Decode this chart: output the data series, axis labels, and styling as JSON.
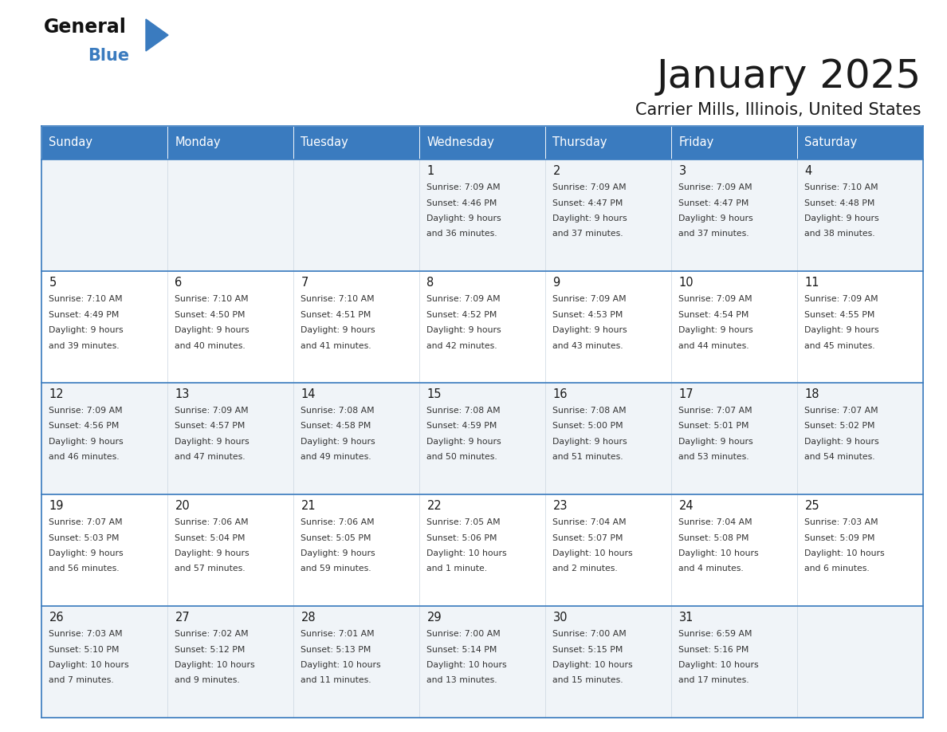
{
  "title": "January 2025",
  "subtitle": "Carrier Mills, Illinois, United States",
  "header_bg": "#3a7bbf",
  "header_text": "#ffffff",
  "row_bg_odd": "#f0f4f8",
  "row_bg_even": "#ffffff",
  "cell_border": "#c8d4e0",
  "day_number_color": "#1a1a1a",
  "data_text_color": "#333333",
  "days_of_week": [
    "Sunday",
    "Monday",
    "Tuesday",
    "Wednesday",
    "Thursday",
    "Friday",
    "Saturday"
  ],
  "weeks": [
    [
      {
        "day": "",
        "info": ""
      },
      {
        "day": "",
        "info": ""
      },
      {
        "day": "",
        "info": ""
      },
      {
        "day": "1",
        "info": "Sunrise: 7:09 AM\nSunset: 4:46 PM\nDaylight: 9 hours\nand 36 minutes."
      },
      {
        "day": "2",
        "info": "Sunrise: 7:09 AM\nSunset: 4:47 PM\nDaylight: 9 hours\nand 37 minutes."
      },
      {
        "day": "3",
        "info": "Sunrise: 7:09 AM\nSunset: 4:47 PM\nDaylight: 9 hours\nand 37 minutes."
      },
      {
        "day": "4",
        "info": "Sunrise: 7:10 AM\nSunset: 4:48 PM\nDaylight: 9 hours\nand 38 minutes."
      }
    ],
    [
      {
        "day": "5",
        "info": "Sunrise: 7:10 AM\nSunset: 4:49 PM\nDaylight: 9 hours\nand 39 minutes."
      },
      {
        "day": "6",
        "info": "Sunrise: 7:10 AM\nSunset: 4:50 PM\nDaylight: 9 hours\nand 40 minutes."
      },
      {
        "day": "7",
        "info": "Sunrise: 7:10 AM\nSunset: 4:51 PM\nDaylight: 9 hours\nand 41 minutes."
      },
      {
        "day": "8",
        "info": "Sunrise: 7:09 AM\nSunset: 4:52 PM\nDaylight: 9 hours\nand 42 minutes."
      },
      {
        "day": "9",
        "info": "Sunrise: 7:09 AM\nSunset: 4:53 PM\nDaylight: 9 hours\nand 43 minutes."
      },
      {
        "day": "10",
        "info": "Sunrise: 7:09 AM\nSunset: 4:54 PM\nDaylight: 9 hours\nand 44 minutes."
      },
      {
        "day": "11",
        "info": "Sunrise: 7:09 AM\nSunset: 4:55 PM\nDaylight: 9 hours\nand 45 minutes."
      }
    ],
    [
      {
        "day": "12",
        "info": "Sunrise: 7:09 AM\nSunset: 4:56 PM\nDaylight: 9 hours\nand 46 minutes."
      },
      {
        "day": "13",
        "info": "Sunrise: 7:09 AM\nSunset: 4:57 PM\nDaylight: 9 hours\nand 47 minutes."
      },
      {
        "day": "14",
        "info": "Sunrise: 7:08 AM\nSunset: 4:58 PM\nDaylight: 9 hours\nand 49 minutes."
      },
      {
        "day": "15",
        "info": "Sunrise: 7:08 AM\nSunset: 4:59 PM\nDaylight: 9 hours\nand 50 minutes."
      },
      {
        "day": "16",
        "info": "Sunrise: 7:08 AM\nSunset: 5:00 PM\nDaylight: 9 hours\nand 51 minutes."
      },
      {
        "day": "17",
        "info": "Sunrise: 7:07 AM\nSunset: 5:01 PM\nDaylight: 9 hours\nand 53 minutes."
      },
      {
        "day": "18",
        "info": "Sunrise: 7:07 AM\nSunset: 5:02 PM\nDaylight: 9 hours\nand 54 minutes."
      }
    ],
    [
      {
        "day": "19",
        "info": "Sunrise: 7:07 AM\nSunset: 5:03 PM\nDaylight: 9 hours\nand 56 minutes."
      },
      {
        "day": "20",
        "info": "Sunrise: 7:06 AM\nSunset: 5:04 PM\nDaylight: 9 hours\nand 57 minutes."
      },
      {
        "day": "21",
        "info": "Sunrise: 7:06 AM\nSunset: 5:05 PM\nDaylight: 9 hours\nand 59 minutes."
      },
      {
        "day": "22",
        "info": "Sunrise: 7:05 AM\nSunset: 5:06 PM\nDaylight: 10 hours\nand 1 minute."
      },
      {
        "day": "23",
        "info": "Sunrise: 7:04 AM\nSunset: 5:07 PM\nDaylight: 10 hours\nand 2 minutes."
      },
      {
        "day": "24",
        "info": "Sunrise: 7:04 AM\nSunset: 5:08 PM\nDaylight: 10 hours\nand 4 minutes."
      },
      {
        "day": "25",
        "info": "Sunrise: 7:03 AM\nSunset: 5:09 PM\nDaylight: 10 hours\nand 6 minutes."
      }
    ],
    [
      {
        "day": "26",
        "info": "Sunrise: 7:03 AM\nSunset: 5:10 PM\nDaylight: 10 hours\nand 7 minutes."
      },
      {
        "day": "27",
        "info": "Sunrise: 7:02 AM\nSunset: 5:12 PM\nDaylight: 10 hours\nand 9 minutes."
      },
      {
        "day": "28",
        "info": "Sunrise: 7:01 AM\nSunset: 5:13 PM\nDaylight: 10 hours\nand 11 minutes."
      },
      {
        "day": "29",
        "info": "Sunrise: 7:00 AM\nSunset: 5:14 PM\nDaylight: 10 hours\nand 13 minutes."
      },
      {
        "day": "30",
        "info": "Sunrise: 7:00 AM\nSunset: 5:15 PM\nDaylight: 10 hours\nand 15 minutes."
      },
      {
        "day": "31",
        "info": "Sunrise: 6:59 AM\nSunset: 5:16 PM\nDaylight: 10 hours\nand 17 minutes."
      },
      {
        "day": "",
        "info": ""
      }
    ]
  ],
  "fig_width": 11.88,
  "fig_height": 9.18,
  "dpi": 100
}
